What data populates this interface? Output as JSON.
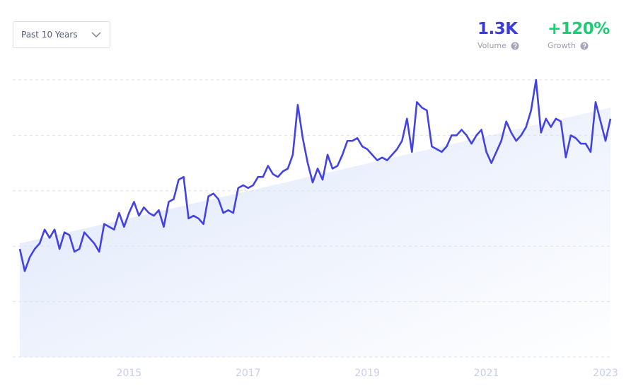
{
  "controls": {
    "timeframe": "Past 10 Years"
  },
  "stats": [
    {
      "value": "1.3K",
      "label": "Volume",
      "color": "#3c3cd8"
    },
    {
      "value": "+120%",
      "label": "Growth",
      "color": "#1fcb74"
    }
  ],
  "chart_data": {
    "type": "line",
    "categories": [
      null,
      null,
      null,
      null,
      null,
      null,
      null,
      null,
      null,
      null,
      null,
      null,
      null,
      null,
      null,
      null,
      null,
      null,
      null,
      null,
      null,
      null,
      "2015",
      null,
      null,
      null,
      null,
      null,
      null,
      null,
      null,
      null,
      null,
      null,
      null,
      null,
      null,
      null,
      null,
      null,
      null,
      null,
      null,
      null,
      null,
      null,
      "2017",
      null,
      null,
      null,
      null,
      null,
      null,
      null,
      null,
      null,
      null,
      null,
      null,
      null,
      null,
      null,
      null,
      null,
      null,
      null,
      null,
      null,
      null,
      null,
      "2019",
      null,
      null,
      null,
      null,
      null,
      null,
      null,
      null,
      null,
      null,
      null,
      null,
      null,
      null,
      null,
      null,
      null,
      null,
      null,
      null,
      null,
      null,
      null,
      "2021",
      null,
      null,
      null,
      null,
      null,
      null,
      null,
      null,
      null,
      null,
      null,
      null,
      null,
      null,
      null,
      null,
      null,
      null,
      null,
      null,
      null,
      null,
      null,
      "2023",
      null
    ],
    "values": [
      39,
      31,
      36,
      39,
      41,
      46,
      43,
      46,
      39,
      45,
      44,
      38,
      39,
      45,
      43,
      41,
      38,
      48,
      47,
      46,
      52,
      47,
      52,
      56,
      51,
      54,
      52,
      51,
      53,
      47,
      56,
      57,
      64,
      65,
      50,
      51,
      50,
      48,
      58,
      59,
      57,
      52,
      53,
      52,
      61,
      62,
      61,
      62,
      65,
      65,
      69,
      66,
      65,
      67,
      68,
      73,
      91,
      79,
      70,
      63,
      68,
      64,
      73,
      68,
      69,
      73,
      78,
      78,
      79,
      76,
      75,
      73,
      71,
      72,
      71,
      73,
      75,
      78,
      86,
      74,
      92,
      90,
      89,
      76,
      75,
      74,
      76,
      80,
      80,
      82,
      80,
      77,
      80,
      82,
      74,
      70,
      74,
      78,
      85,
      81,
      78,
      80,
      83,
      89,
      100,
      81,
      86,
      83,
      86,
      85,
      72,
      80,
      79,
      77,
      77,
      74,
      92,
      85,
      78,
      86
    ],
    "color": "#4343e4",
    "trend": [
      41,
      90
    ],
    "ylim": [
      0,
      100
    ],
    "yticks": [
      0,
      20,
      40,
      60,
      80,
      100
    ],
    "grid": true
  }
}
